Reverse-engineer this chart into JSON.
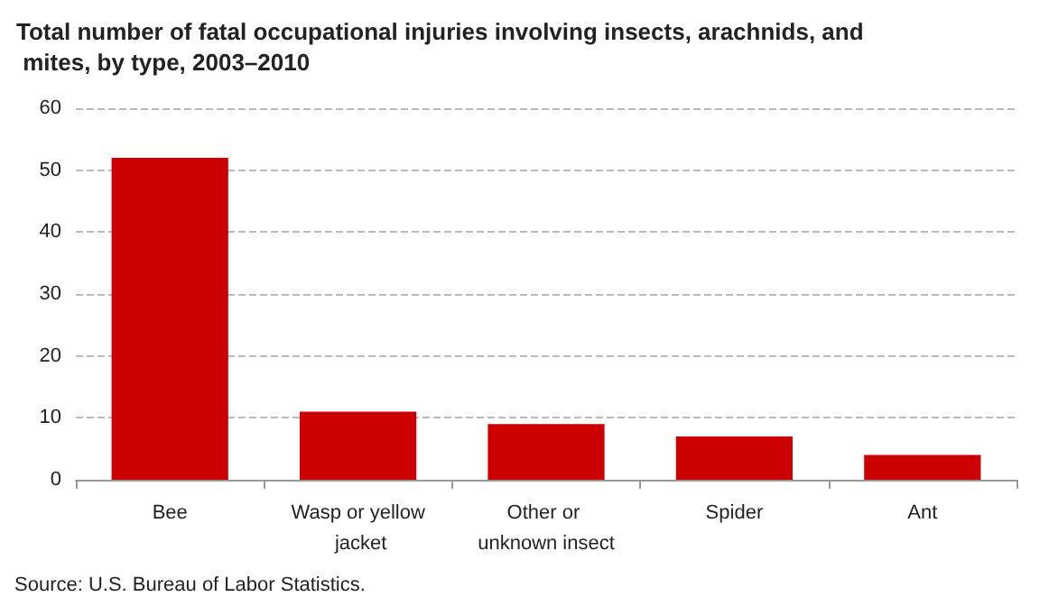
{
  "chart_data": {
    "type": "bar",
    "title": "Total number of fatal occupational injuries involving insects, arachnids, and mites, by type, 2003–2010",
    "categories": [
      "Bee",
      "Wasp or yellow jacket",
      "Other or unknown insect",
      "Spider",
      "Ant"
    ],
    "values": [
      52,
      11,
      9,
      7,
      4
    ],
    "color": "#cc0000",
    "ylim": [
      0,
      60
    ],
    "yticks": [
      0,
      10,
      20,
      30,
      40,
      50,
      60
    ],
    "grid": "y",
    "annotations": [
      "Source: U.S. Bureau of Labor Statistics."
    ]
  }
}
